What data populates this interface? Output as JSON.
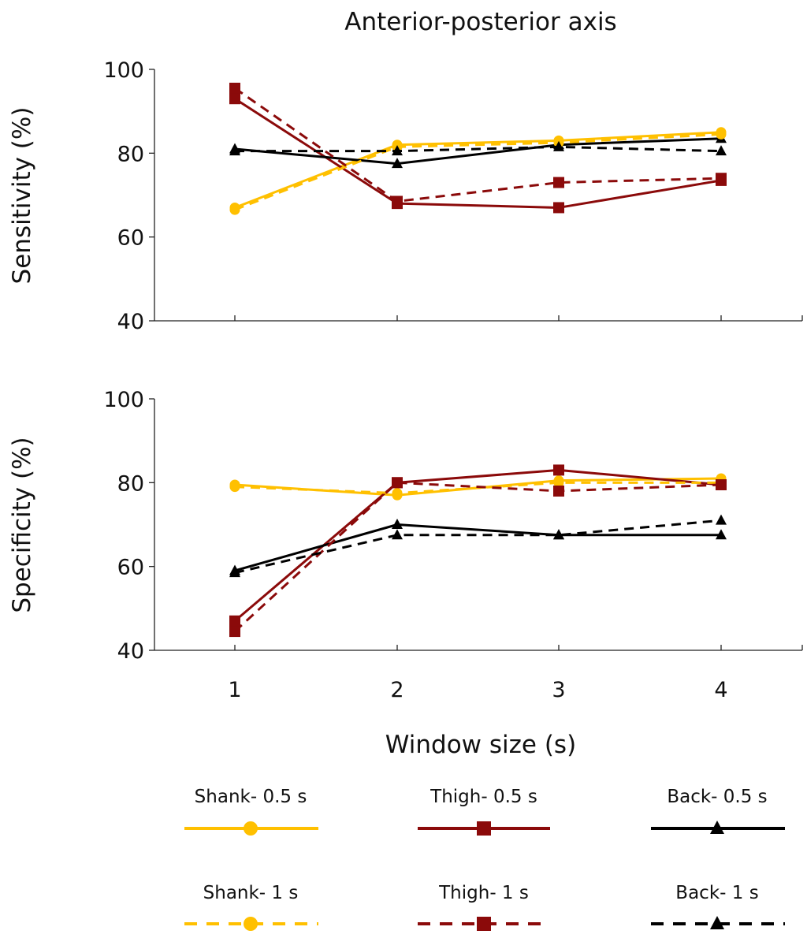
{
  "chart_data": {
    "type": "line",
    "title": "Anterior-posterior axis",
    "xlabel": "Window size (s)",
    "x": [
      1,
      2,
      3,
      4
    ],
    "xticks": [
      "1",
      "2",
      "3",
      "4"
    ],
    "series_styles": [
      {
        "name": "Shank- 0.5 s",
        "color": "#FFC000",
        "marker": "circle",
        "dash": "solid"
      },
      {
        "name": "Thigh- 0.5 s",
        "color": "#8B0A0A",
        "marker": "square",
        "dash": "solid"
      },
      {
        "name": "Back- 0.5 s",
        "color": "#000000",
        "marker": "triangle",
        "dash": "solid"
      },
      {
        "name": "Shank- 1 s",
        "color": "#FFC000",
        "marker": "circle",
        "dash": "dashed"
      },
      {
        "name": "Thigh- 1 s",
        "color": "#8B0A0A",
        "marker": "square",
        "dash": "dashed"
      },
      {
        "name": "Back- 1 s",
        "color": "#000000",
        "marker": "triangle",
        "dash": "dashed"
      }
    ],
    "panels": [
      {
        "ylabel": "Sensitivity (%)",
        "ylim": [
          40,
          100
        ],
        "yticks": [
          "40",
          "60",
          "80",
          "100"
        ],
        "series": [
          {
            "name": "Shank- 0.5 s",
            "values": [
              67,
              82,
              83,
              85
            ]
          },
          {
            "name": "Thigh- 0.5 s",
            "values": [
              93,
              68,
              67,
              73.5
            ]
          },
          {
            "name": "Back- 0.5 s",
            "values": [
              81,
              77.5,
              82,
              83.5
            ]
          },
          {
            "name": "Shank- 1 s",
            "values": [
              66.5,
              81.5,
              82.5,
              84.5
            ]
          },
          {
            "name": "Thigh- 1 s",
            "values": [
              95.5,
              68.5,
              73,
              74
            ]
          },
          {
            "name": "Back- 1 s",
            "values": [
              80.5,
              80.5,
              81.5,
              80.5
            ]
          }
        ]
      },
      {
        "ylabel": "Specificity (%)",
        "ylim": [
          40,
          100
        ],
        "yticks": [
          "40",
          "60",
          "80",
          "100"
        ],
        "series": [
          {
            "name": "Shank- 0.5 s",
            "values": [
              79.5,
              77,
              80.5,
              81
            ]
          },
          {
            "name": "Thigh- 0.5 s",
            "values": [
              47,
              80,
              83,
              79.5
            ]
          },
          {
            "name": "Back- 0.5 s",
            "values": [
              59,
              70,
              67.5,
              67.5
            ]
          },
          {
            "name": "Shank- 1 s",
            "values": [
              79,
              77.5,
              80,
              80
            ]
          },
          {
            "name": "Thigh- 1 s",
            "values": [
              44.5,
              80,
              78,
              79.5
            ]
          },
          {
            "name": "Back- 1 s",
            "values": [
              58.5,
              67.5,
              67.5,
              71
            ]
          }
        ]
      }
    ]
  }
}
